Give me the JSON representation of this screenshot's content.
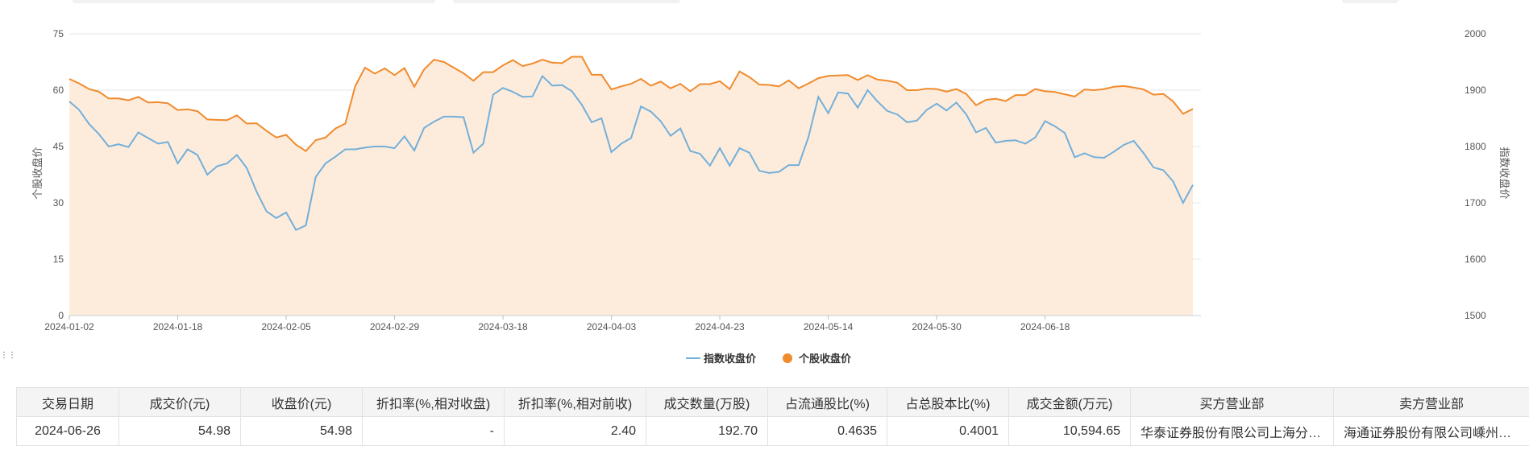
{
  "chart_data": {
    "type": "line",
    "ylabel_left": "个股收盘价",
    "ylabel_right": "指数收盘价",
    "y_left_range": [
      0,
      75
    ],
    "y_left_ticks": [
      "0",
      "15",
      "30",
      "45",
      "60",
      "75"
    ],
    "y_right_range": [
      1500,
      2000
    ],
    "y_right_ticks": [
      "1500",
      "1600",
      "1700",
      "1800",
      "1900",
      "2000"
    ],
    "x_tick_labels": [
      "2024-01-02",
      "2024-01-18",
      "2024-02-05",
      "2024-02-29",
      "2024-03-18",
      "2024-04-03",
      "2024-04-23",
      "2024-05-14",
      "2024-05-30",
      "2024-06-18"
    ],
    "x_tick_index": [
      0,
      11,
      22,
      33,
      44,
      55,
      66,
      77,
      88,
      99
    ],
    "grid": true,
    "legend_position": "bottom-center",
    "series": [
      {
        "name": "指数收盘价",
        "axis": "right",
        "color": "#74afd9",
        "values": [
          1880,
          1865,
          1840,
          1822,
          1800,
          1804,
          1799,
          1825,
          1815,
          1805,
          1808,
          1770,
          1795,
          1785,
          1750,
          1765,
          1770,
          1785,
          1762,
          1720,
          1685,
          1673,
          1683,
          1652,
          1660,
          1746,
          1770,
          1782,
          1795,
          1795,
          1798,
          1800,
          1800,
          1797,
          1818,
          1793,
          1833,
          1844,
          1853,
          1853,
          1852,
          1789,
          1805,
          1892,
          1904,
          1897,
          1888,
          1889,
          1925,
          1908,
          1909,
          1898,
          1874,
          1843,
          1850,
          1790,
          1805,
          1815,
          1871,
          1862,
          1845,
          1819,
          1832,
          1792,
          1787,
          1766,
          1797,
          1766,
          1797,
          1789,
          1757,
          1753,
          1755,
          1767,
          1767,
          1817,
          1888,
          1859,
          1896,
          1894,
          1869,
          1900,
          1880,
          1863,
          1857,
          1843,
          1846,
          1865,
          1876,
          1864,
          1878,
          1857,
          1825,
          1833,
          1807,
          1810,
          1811,
          1805,
          1816,
          1845,
          1836,
          1824,
          1781,
          1788,
          1781,
          1780,
          1791,
          1803,
          1810,
          1788,
          1763,
          1758,
          1738,
          1700,
          1732
        ]
      },
      {
        "name": "个股收盘价",
        "axis": "left",
        "color": "#f08b2e",
        "values": [
          63,
          61.8,
          60.3,
          59.6,
          57.8,
          57.8,
          57.3,
          58.2,
          56.7,
          56.8,
          56.5,
          54.7,
          54.9,
          54.4,
          52.2,
          52.1,
          52.0,
          53.3,
          51.1,
          51.2,
          49.2,
          47.4,
          48.1,
          45.5,
          43.8,
          46.7,
          47.4,
          49.8,
          51.1,
          61.0,
          66.0,
          64.4,
          65.8,
          64.0,
          65.9,
          60.9,
          65.5,
          68.1,
          67.5,
          66.0,
          64.5,
          62.5,
          64.8,
          64.8,
          66.6,
          68.0,
          66.4,
          67.1,
          68.1,
          67.3,
          67.2,
          68.9,
          68.9,
          64.1,
          64.1,
          60.2,
          61.0,
          61.7,
          63.0,
          61.2,
          62.3,
          60.5,
          61.7,
          59.7,
          61.6,
          61.6,
          62.4,
          60.3,
          65.0,
          63.5,
          61.5,
          61.4,
          61.0,
          62.6,
          60.5,
          61.8,
          63.2,
          63.8,
          63.9,
          64.0,
          62.7,
          64.0,
          62.8,
          62.5,
          62.0,
          60.0,
          60.0,
          60.4,
          60.3,
          59.6,
          60.3,
          59.0,
          56.0,
          57.4,
          57.7,
          57.1,
          58.7,
          58.7,
          60.3,
          59.7,
          59.5,
          58.9,
          58.3,
          60.2,
          60.0,
          60.3,
          60.9,
          61.1,
          60.7,
          60.2,
          58.8,
          59.0,
          57.0,
          53.7,
          55.0
        ]
      }
    ]
  },
  "legend": {
    "index_label": "指数收盘价",
    "stock_label": "个股收盘价"
  },
  "table": {
    "headers": [
      "交易日期",
      "成交价(元)",
      "收盘价(元)",
      "折扣率(%,相对收盘)",
      "折扣率(%,相对前收)",
      "成交数量(万股)",
      "占流通股比(%)",
      "占总股本比(%)",
      "成交金额(万元)",
      "买方营业部",
      "卖方营业部"
    ],
    "rows": [
      [
        "2024-06-26",
        "54.98",
        "54.98",
        "-",
        "2.40",
        "192.70",
        "0.4635",
        "0.4001",
        "10,594.65",
        "华泰证券股份有限公司上海分…",
        "海通证券股份有限公司嵊州高…"
      ]
    ]
  }
}
